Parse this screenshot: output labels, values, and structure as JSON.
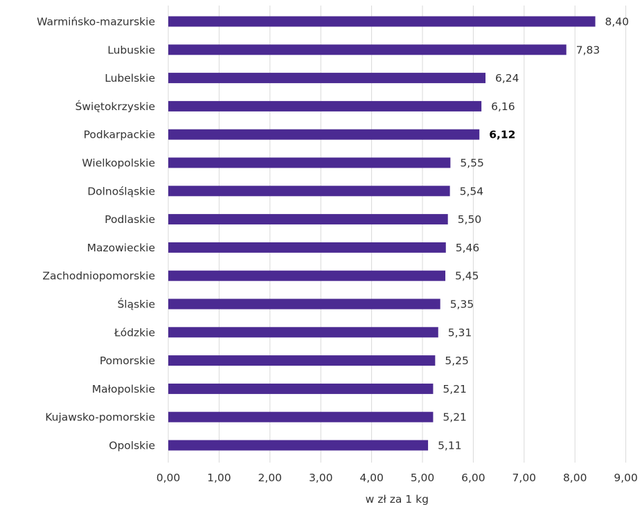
{
  "chart_data": {
    "type": "bar",
    "orientation": "horizontal",
    "categories": [
      "Warmińsko-mazurskie",
      "Lubuskie",
      "Lubelskie",
      "Świętokrzyskie",
      "Podkarpackie",
      "Wielkopolskie",
      "Dolnośląskie",
      "Podlaskie",
      "Mazowieckie",
      "Zachodniopomorskie",
      "Śląskie",
      "Łódzkie",
      "Pomorskie",
      "Małopolskie",
      "Kujawsko-pomorskie",
      "Opolskie"
    ],
    "values": [
      8.4,
      7.83,
      6.24,
      6.16,
      6.12,
      5.55,
      5.54,
      5.5,
      5.46,
      5.45,
      5.35,
      5.31,
      5.25,
      5.21,
      5.21,
      5.11
    ],
    "value_labels": [
      "8,40",
      "7,83",
      "6,24",
      "6,16",
      "6,12",
      "5,55",
      "5,54",
      "5,50",
      "5,46",
      "5,45",
      "5,35",
      "5,31",
      "5,25",
      "5,21",
      "5,21",
      "5,11"
    ],
    "emphasized_index": 4,
    "xlabel": "w zł za 1 kg",
    "ylabel": "",
    "title": "",
    "xlim": [
      0,
      9
    ],
    "x_ticks": [
      "0,00",
      "1,00",
      "2,00",
      "3,00",
      "4,00",
      "5,00",
      "6,00",
      "7,00",
      "8,00",
      "9,00"
    ],
    "grid": "vertical",
    "legend": "none",
    "bar_color": "#4B2A92"
  }
}
